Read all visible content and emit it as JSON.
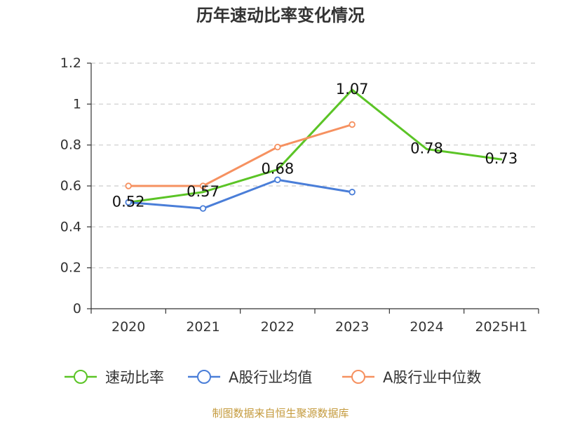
{
  "chart_data": {
    "type": "line",
    "title": "历年速动比率变化情况",
    "xlabel": "",
    "ylabel": "",
    "categories": [
      "2020",
      "2021",
      "2022",
      "2023",
      "2024",
      "2025H1"
    ],
    "ylim": [
      0,
      1.2
    ],
    "yticks": [
      0,
      0.2,
      0.4,
      0.6,
      0.8,
      1,
      1.2
    ],
    "ytick_labels": [
      "0",
      "0.2",
      "0.4",
      "0.6",
      "0.8",
      "1",
      "1.2"
    ],
    "grid": true,
    "legend_position": "bottom",
    "series": [
      {
        "name": "速动比率",
        "color": "#5bc426",
        "markers": false,
        "values": [
          0.52,
          0.57,
          0.68,
          1.07,
          0.78,
          0.73
        ],
        "data_labels": [
          "0.52",
          "0.57",
          "0.68",
          "1.07",
          "0.78",
          "0.73"
        ]
      },
      {
        "name": "A股行业均值",
        "color": "#4a7ed8",
        "markers": true,
        "values": [
          0.52,
          0.49,
          0.63,
          0.57,
          null,
          null
        ]
      },
      {
        "name": "A股行业中位数",
        "color": "#f69160",
        "markers": true,
        "values": [
          0.6,
          0.6,
          0.79,
          0.9,
          null,
          null
        ]
      }
    ]
  },
  "footer": "制图数据来自恒生聚源数据库"
}
